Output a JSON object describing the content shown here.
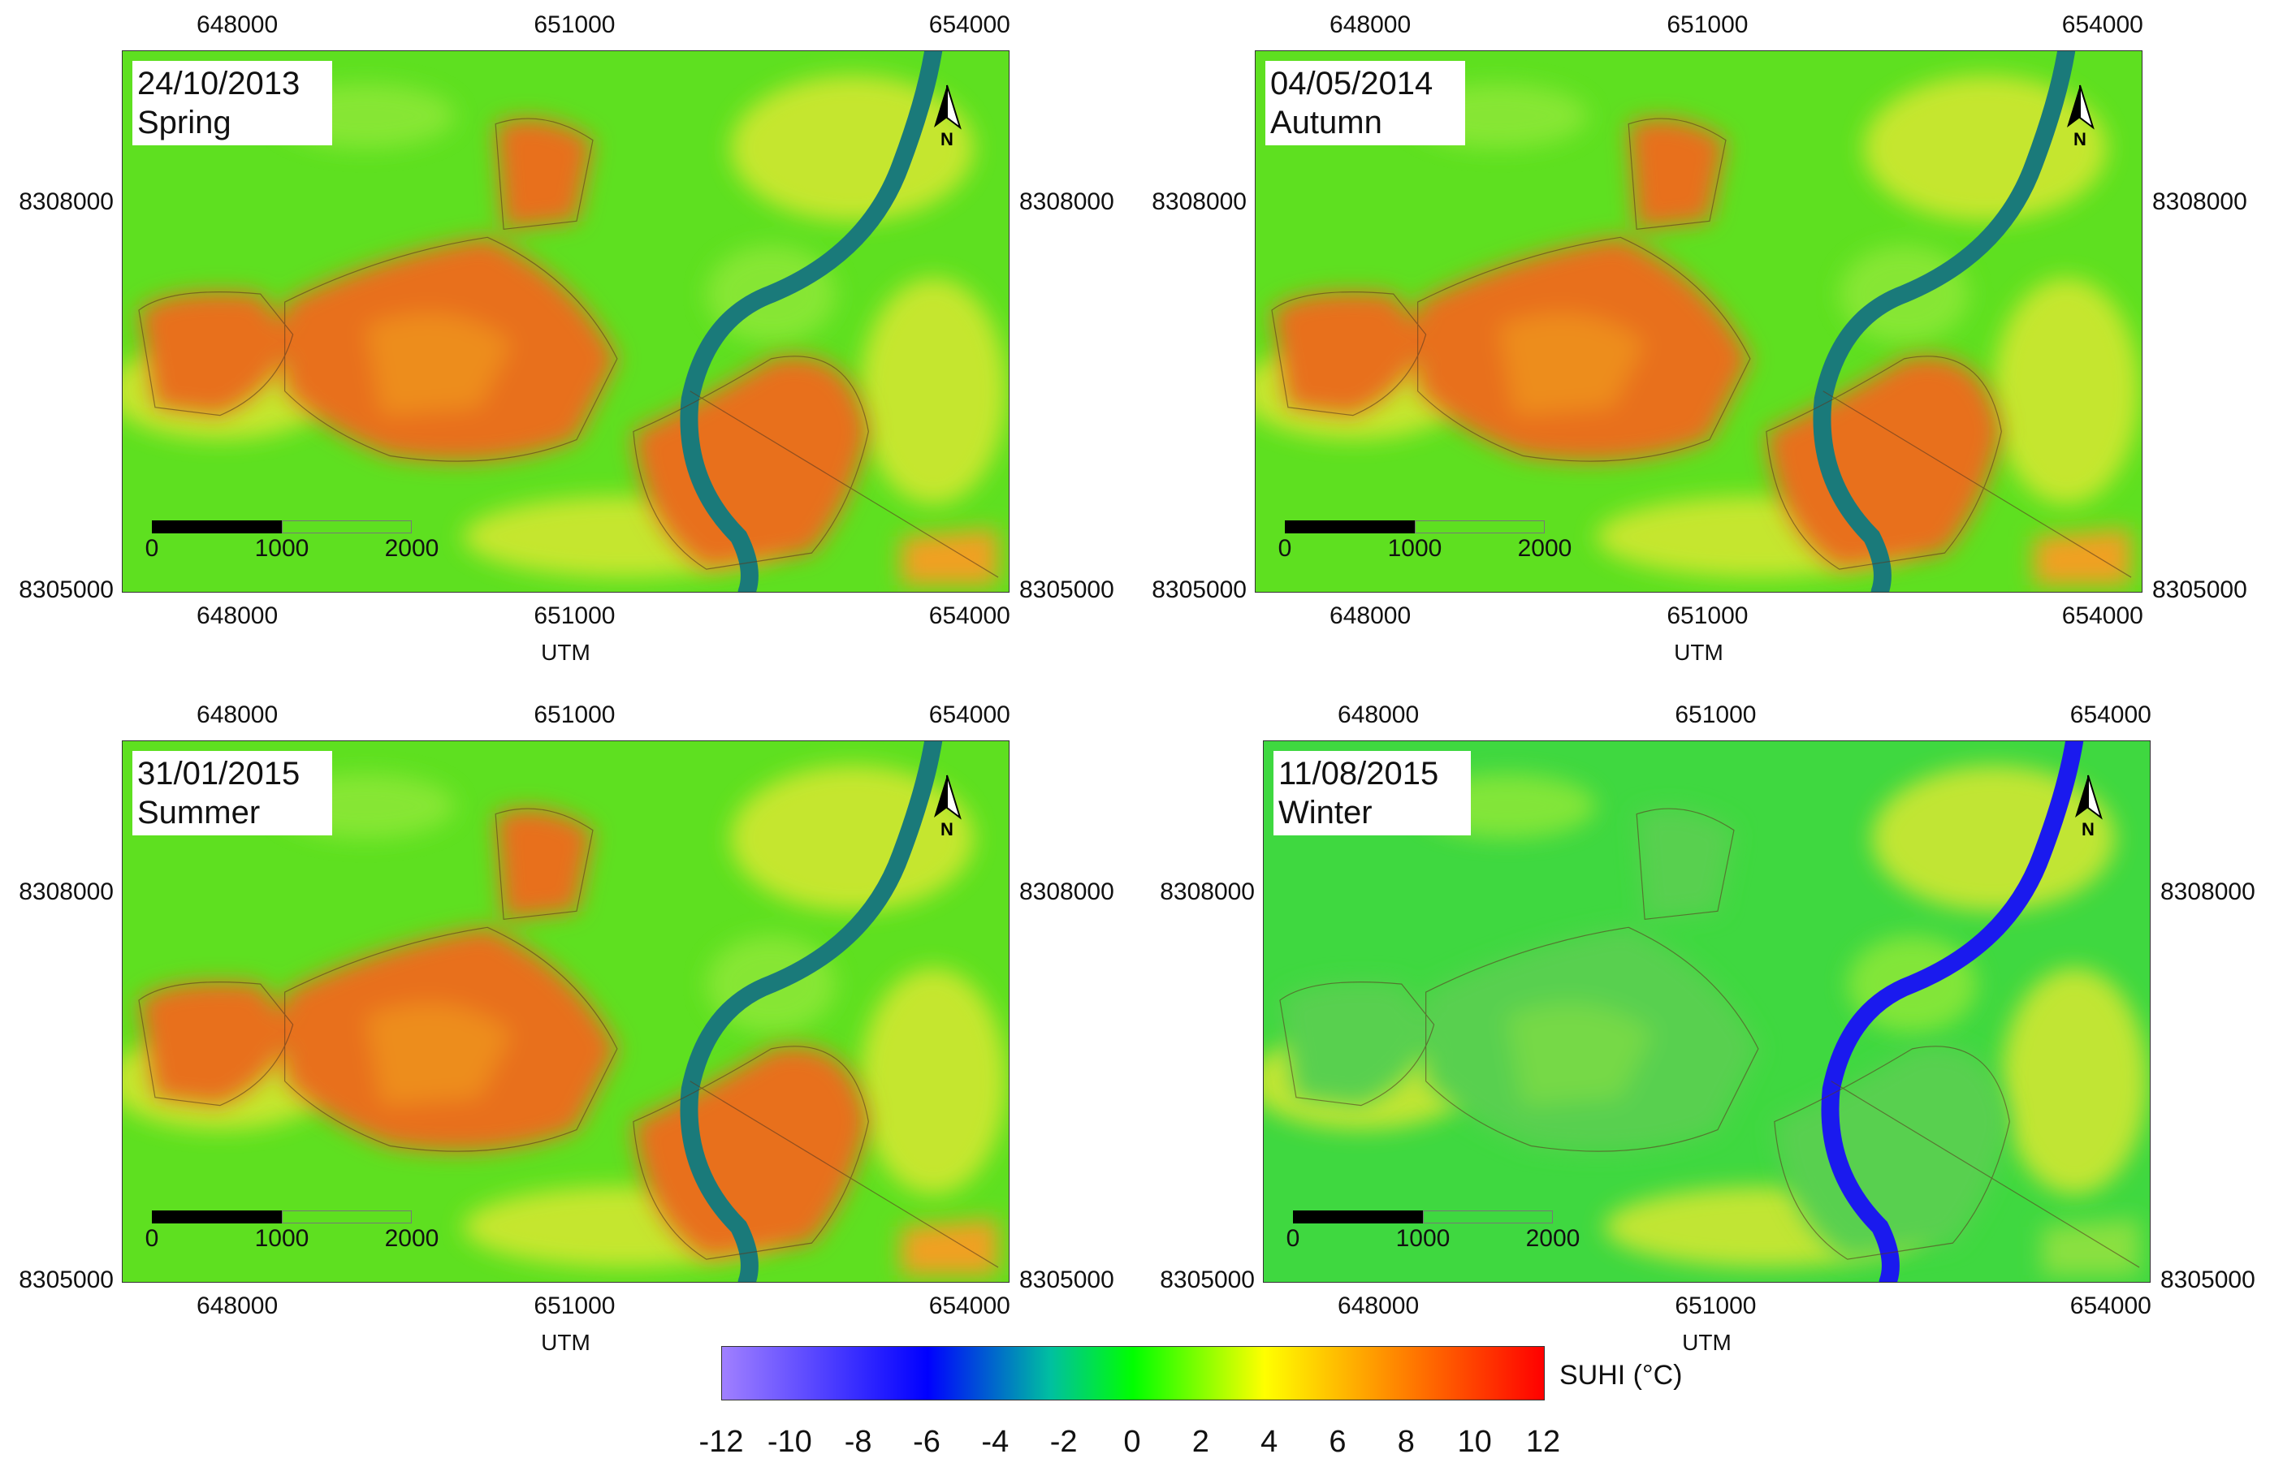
{
  "legend": {
    "title": "SUHI (°C)",
    "ticks": [
      "-12",
      "-10",
      "-8",
      "-6",
      "-4",
      "-2",
      "0",
      "2",
      "4",
      "6",
      "8",
      "10",
      "12"
    ],
    "colors": [
      "#a080ff",
      "#0000ff",
      "#00c0a0",
      "#00ff00",
      "#ffff00",
      "#ff8000",
      "#ff0000"
    ]
  },
  "axis": {
    "x_ticks": [
      "648000",
      "651000",
      "654000"
    ],
    "y_ticks": [
      "8308000",
      "8305000"
    ],
    "x_label": "UTM"
  },
  "scale": {
    "labels": [
      "0",
      "1000",
      "2000"
    ]
  },
  "north_label": "N",
  "panels": [
    {
      "date": "24/10/2013",
      "season": "Spring",
      "palette": "warm"
    },
    {
      "date": "04/05/2014",
      "season": "Autumn",
      "palette": "warm"
    },
    {
      "date": "31/01/2015",
      "season": "Summer",
      "palette": "warm"
    },
    {
      "date": "11/08/2015",
      "season": "Winter",
      "palette": "cool"
    }
  ]
}
